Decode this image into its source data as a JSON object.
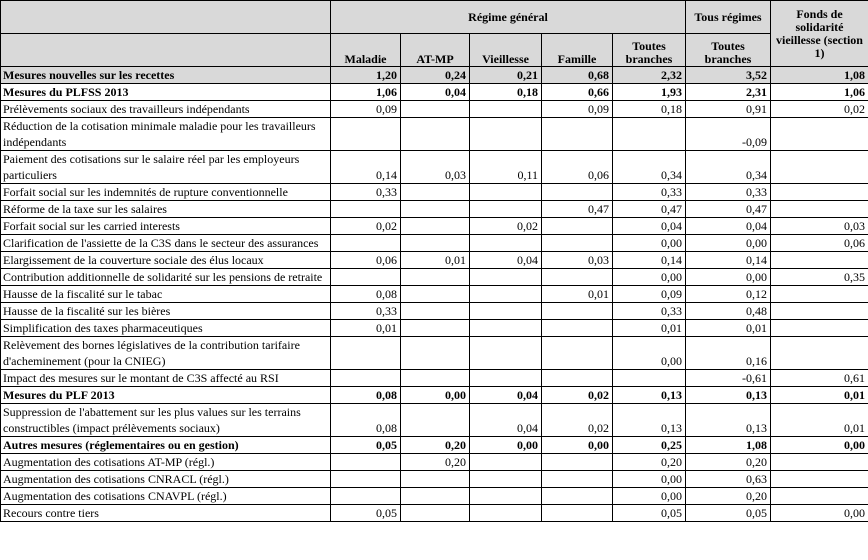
{
  "table": {
    "header": {
      "group": "Régime général",
      "all_regimes": "Tous régimes",
      "fsv": "Fonds de solidarité vieillesse (section 1)",
      "columns": [
        "Maladie",
        "AT-MP",
        "Vieillesse",
        "Famille",
        "Toutes branches",
        "Toutes branches"
      ]
    },
    "rows": [
      {
        "label": "Mesures nouvelles sur les recettes",
        "bold": true,
        "shaded": true,
        "cells": [
          "1,20",
          "0,24",
          "0,21",
          "0,68",
          "2,32",
          "3,52",
          "1,08"
        ]
      },
      {
        "label": "Mesures du PLFSS 2013",
        "bold": true,
        "cells": [
          "1,06",
          "0,04",
          "0,18",
          "0,66",
          "1,93",
          "2,31",
          "1,06"
        ]
      },
      {
        "label": "Prélèvements sociaux des travailleurs indépendants",
        "cells": [
          "0,09",
          null,
          null,
          "0,09",
          "0,18",
          "0,91",
          "0,02"
        ]
      },
      {
        "label": "Réduction de la cotisation minimale maladie pour les travailleurs indépendants",
        "cells": [
          null,
          null,
          null,
          null,
          null,
          "-0,09",
          null
        ]
      },
      {
        "label": "Paiement des cotisations sur le salaire réel par les employeurs particuliers",
        "cells": [
          "0,14",
          "0,03",
          "0,11",
          "0,06",
          "0,34",
          "0,34",
          null
        ]
      },
      {
        "label": "Forfait social sur les indemnités de rupture conventionnelle",
        "cells": [
          "0,33",
          null,
          null,
          null,
          "0,33",
          "0,33",
          null
        ]
      },
      {
        "label": "Réforme de la taxe sur les salaires",
        "cells": [
          null,
          null,
          null,
          "0,47",
          "0,47",
          "0,47",
          null
        ]
      },
      {
        "label": "Forfait social sur les carried interests",
        "cells": [
          "0,02",
          null,
          "0,02",
          null,
          "0,04",
          "0,04",
          "0,03"
        ]
      },
      {
        "label": "Clarification de l'assiette de la C3S dans le secteur des assurances",
        "cells": [
          null,
          null,
          null,
          null,
          "0,00",
          "0,00",
          "0,06"
        ]
      },
      {
        "label": "Elargissement de la couverture sociale des élus locaux",
        "cells": [
          "0,06",
          "0,01",
          "0,04",
          "0,03",
          "0,14",
          "0,14",
          null
        ]
      },
      {
        "label": "Contribution additionnelle de solidarité sur les pensions de retraite",
        "cells": [
          null,
          null,
          null,
          null,
          "0,00",
          "0,00",
          "0,35"
        ]
      },
      {
        "label": "Hausse de la fiscalité sur le tabac",
        "cells": [
          "0,08",
          null,
          null,
          "0,01",
          "0,09",
          "0,12",
          null
        ]
      },
      {
        "label": "Hausse de la fiscalité sur les bières",
        "cells": [
          "0,33",
          null,
          null,
          null,
          "0,33",
          "0,48",
          null
        ]
      },
      {
        "label": "Simplification des taxes pharmaceutiques",
        "cells": [
          "0,01",
          null,
          null,
          null,
          "0,01",
          "0,01",
          null
        ]
      },
      {
        "label": "Relèvement des bornes législatives de la contribution tarifaire d'acheminement (pour la CNIEG)",
        "cells": [
          null,
          null,
          null,
          null,
          "0,00",
          "0,16",
          null
        ]
      },
      {
        "label": "Impact des mesures sur le montant de C3S affecté au RSI",
        "cells": [
          null,
          null,
          null,
          null,
          null,
          "-0,61",
          "0,61"
        ]
      },
      {
        "label": "Mesures du PLF 2013",
        "bold": true,
        "cells": [
          "0,08",
          "0,00",
          "0,04",
          "0,02",
          "0,13",
          "0,13",
          "0,01"
        ]
      },
      {
        "label": "Suppression de l'abattement sur les plus values sur les terrains constructibles (impact prélèvements sociaux)",
        "cells": [
          "0,08",
          null,
          "0,04",
          "0,02",
          "0,13",
          "0,13",
          "0,01"
        ]
      },
      {
        "label": "Autres mesures (réglementaires ou en gestion)",
        "bold": true,
        "cells": [
          "0,05",
          "0,20",
          "0,00",
          "0,00",
          "0,25",
          "1,08",
          "0,00"
        ]
      },
      {
        "label": "Augmentation des cotisations AT-MP (régl.)",
        "cells": [
          null,
          "0,20",
          null,
          null,
          "0,20",
          "0,20",
          null
        ]
      },
      {
        "label": "Augmentation des cotisations CNRACL (régl.)",
        "cells": [
          null,
          null,
          null,
          null,
          "0,00",
          "0,63",
          null
        ]
      },
      {
        "label": "Augmentation des cotisations CNAVPL (régl.)",
        "cells": [
          null,
          null,
          null,
          null,
          "0,00",
          "0,20",
          null
        ]
      },
      {
        "label": "Recours contre tiers",
        "cells": [
          "0,05",
          null,
          null,
          null,
          "0,05",
          "0,05",
          "0,00"
        ]
      }
    ]
  }
}
